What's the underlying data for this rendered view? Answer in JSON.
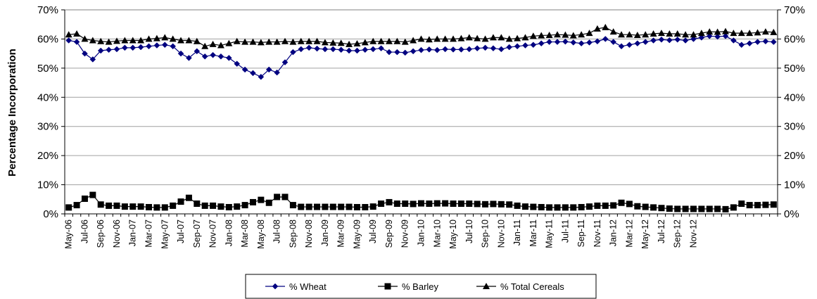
{
  "chart_data": {
    "type": "line",
    "title": "",
    "xlabel": "",
    "ylabel": "Percentage Incorporation",
    "ylim": [
      0,
      70
    ],
    "y_ticks": [
      "0%",
      "10%",
      "20%",
      "30%",
      "40%",
      "50%",
      "60%",
      "70%"
    ],
    "secondary_y_ticks": [
      "0%",
      "10%",
      "20%",
      "30%",
      "40%",
      "50%",
      "60%",
      "70%"
    ],
    "grid": true,
    "legend_position": "bottom",
    "x_tick_labels": [
      "May-06",
      "Jul-06",
      "Sep-06",
      "Nov-06",
      "Jan-07",
      "Mar-07",
      "May-07",
      "Jul-07",
      "Sep-07",
      "Nov-07",
      "Jan-08",
      "Mar-08",
      "May-08",
      "Jul-08",
      "Sep-08",
      "Nov-08",
      "Jan-09",
      "Mar-09",
      "May-09",
      "Jul-09",
      "Sep-09",
      "Nov-09",
      "Jan-10",
      "Mar-10",
      "May-10",
      "Jul-10",
      "Sep-10",
      "Nov-10",
      "Jan-11",
      "Mar-11",
      "May-11",
      "Jul-11",
      "Sep-11",
      "Nov-11",
      "Jan-12",
      "Mar-12",
      "May-12",
      "Jul-12",
      "Sep-12",
      "Nov-12"
    ],
    "x_start": "May-06",
    "x_end": "Nov-12",
    "series": [
      {
        "name": "% Wheat",
        "color": "#000080",
        "marker": "diamond",
        "values": [
          59.5,
          59,
          55,
          53,
          56,
          56.3,
          56.5,
          57,
          57,
          57.2,
          57.5,
          57.8,
          58,
          57.5,
          55,
          53.5,
          55.8,
          54,
          54.5,
          54,
          53.5,
          51.5,
          49.5,
          48.3,
          47,
          49.5,
          48.5,
          52,
          55.5,
          56.5,
          57,
          56.7,
          56.5,
          56.5,
          56.3,
          56,
          56,
          56.3,
          56.5,
          56.8,
          55.5,
          55.5,
          55.3,
          55.8,
          56.2,
          56.4,
          56.2,
          56.5,
          56.4,
          56.4,
          56.5,
          56.8,
          57,
          56.8,
          56.5,
          57.2,
          57.5,
          57.8,
          58,
          58.5,
          59,
          59,
          59.1,
          58.8,
          58.5,
          58.8,
          59.2,
          60,
          59,
          57.5,
          58,
          58.5,
          59,
          59.5,
          59.8,
          59.6,
          59.8,
          59.5,
          60,
          60.5,
          61,
          60.8,
          61,
          59.5,
          58,
          58.5,
          59,
          59.2,
          59
        ]
      },
      {
        "name": "% Barley",
        "color": "#000000",
        "marker": "square",
        "values": [
          2.2,
          3,
          5.2,
          6.5,
          3.2,
          2.8,
          2.8,
          2.5,
          2.5,
          2.5,
          2.3,
          2.2,
          2.2,
          2.8,
          4.2,
          5.5,
          3.5,
          2.8,
          2.8,
          2.5,
          2.3,
          2.5,
          3,
          4,
          4.8,
          3.8,
          5.8,
          5.8,
          3,
          2.4,
          2.4,
          2.4,
          2.4,
          2.4,
          2.4,
          2.4,
          2.3,
          2.3,
          2.5,
          3.5,
          4,
          3.5,
          3.5,
          3.4,
          3.6,
          3.5,
          3.6,
          3.6,
          3.5,
          3.5,
          3.5,
          3.4,
          3.3,
          3.4,
          3.3,
          3.2,
          2.8,
          2.5,
          2.4,
          2.3,
          2.2,
          2.2,
          2.2,
          2.2,
          2.3,
          2.5,
          2.8,
          2.8,
          2.9,
          3.8,
          3.4,
          2.6,
          2.4,
          2.2,
          2,
          1.8,
          1.7,
          1.7,
          1.7,
          1.7,
          1.7,
          1.7,
          1.6,
          2.2,
          3.5,
          3,
          3,
          3.1,
          3.2
        ]
      },
      {
        "name": "% Total Cereals",
        "color": "#000000",
        "marker": "triangle",
        "values": [
          61.5,
          61.8,
          60,
          59.5,
          59.2,
          59,
          59.3,
          59.5,
          59.5,
          59.5,
          60,
          60.2,
          60.5,
          60,
          59.5,
          59.5,
          59.2,
          57.5,
          58.2,
          57.8,
          58.5,
          59.2,
          59,
          59,
          58.8,
          59,
          59,
          59.2,
          59,
          59.2,
          59.2,
          59.2,
          58.8,
          58.7,
          58.6,
          58.2,
          58.4,
          58.8,
          59.2,
          59.2,
          59.2,
          59.2,
          59,
          59.5,
          60,
          59.8,
          60,
          60,
          60,
          60.2,
          60.5,
          60.2,
          60,
          60.5,
          60.5,
          60,
          60.2,
          60.5,
          61,
          61.2,
          61.3,
          61.5,
          61.4,
          61.2,
          61.5,
          62,
          63.5,
          64,
          62.5,
          61.5,
          61.5,
          61.3,
          61.5,
          61.8,
          62,
          61.8,
          61.8,
          61.5,
          61.5,
          62,
          62.5,
          62.4,
          62.6,
          62,
          62,
          62,
          62.2,
          62.5,
          62.3
        ]
      }
    ]
  }
}
